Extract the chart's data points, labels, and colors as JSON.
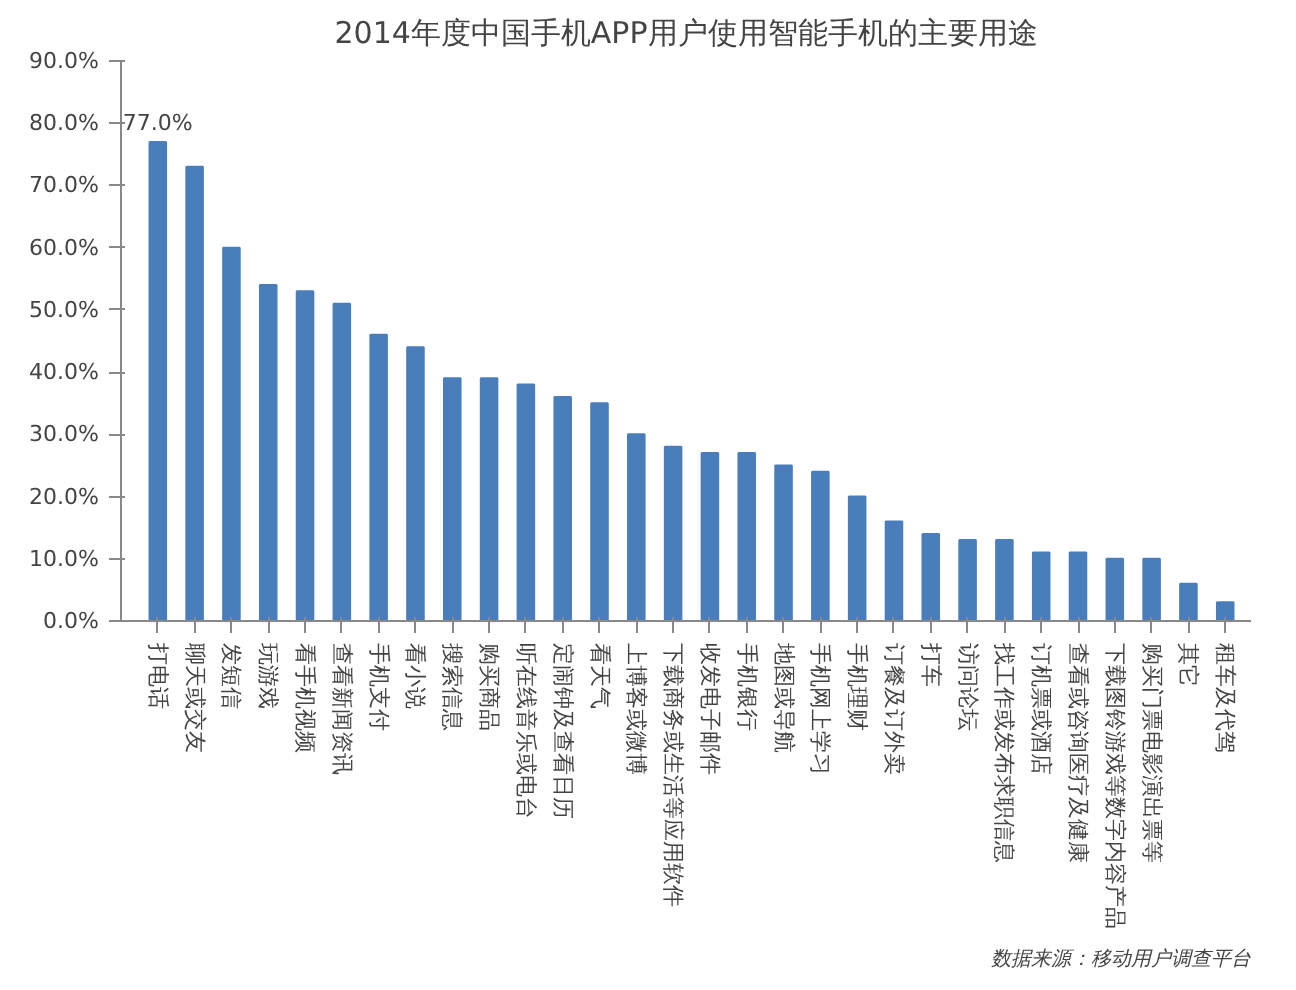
{
  "chart_data": {
    "type": "bar",
    "title": "2014年度中国手机APP用户使用智能手机的主要用途",
    "categories": [
      "打电话",
      "聊天或交友",
      "发短信",
      "玩游戏",
      "看手机视频",
      "查看新闻资讯",
      "手机支付",
      "看小说",
      "搜索信息",
      "购买商品",
      "听在线音乐或电台",
      "定闹钟及查看日历",
      "看天气",
      "上博客或微博",
      "下载商务或生活等应用软件",
      "收发电子邮件",
      "手机银行",
      "地图或导航",
      "手机网上学习",
      "手机理财",
      "订餐及订外卖",
      "打车",
      "访问论坛",
      "找工作或发布求职信息",
      "订机票或酒店",
      "查看或咨询医疗及健康",
      "下载图铃游戏等数字内容产品",
      "购买门票电影演出票等",
      "其它",
      "租车及代驾"
    ],
    "values": [
      77,
      73,
      60,
      54,
      53,
      51,
      46,
      44,
      39,
      39,
      38,
      36,
      35,
      30,
      28,
      27,
      27,
      25,
      24,
      20,
      16,
      14,
      13,
      13,
      11,
      11,
      10,
      10,
      6,
      3
    ],
    "value_labels": [
      "77.0%",
      null,
      null,
      null,
      null,
      null,
      null,
      null,
      null,
      null,
      null,
      null,
      null,
      null,
      null,
      null,
      null,
      null,
      null,
      null,
      null,
      null,
      null,
      null,
      null,
      null,
      null,
      null,
      null,
      null
    ],
    "color": "#4a7ebb",
    "ylim": [
      0,
      90
    ],
    "yticks": [
      {
        "value": 0,
        "label": "0.0%"
      },
      {
        "value": 10,
        "label": "10.0%"
      },
      {
        "value": 20,
        "label": "20.0%"
      },
      {
        "value": 30,
        "label": "30.0%"
      },
      {
        "value": 40,
        "label": "40.0%"
      },
      {
        "value": 50,
        "label": "50.0%"
      },
      {
        "value": 60,
        "label": "60.0%"
      },
      {
        "value": 70,
        "label": "70.0%"
      },
      {
        "value": 80,
        "label": "80.0%"
      },
      {
        "value": 90,
        "label": "90.0%"
      }
    ],
    "grid": false,
    "annotations": [
      "数据来源：移动用户调查平台"
    ]
  }
}
